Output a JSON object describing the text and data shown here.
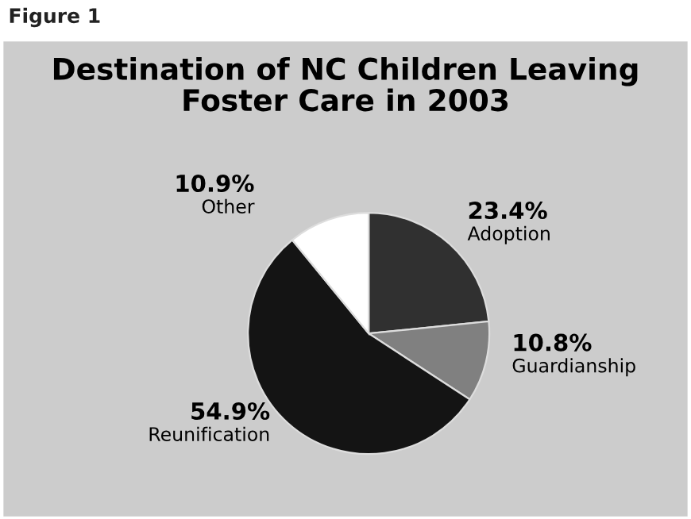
{
  "chart_data": {
    "type": "pie",
    "title": "Destination of NC Children Leaving\nFoster Care in 2003",
    "annotations": [
      "Figure 1"
    ],
    "categories": [
      "Adoption",
      "Guardianship",
      "Reunification",
      "Other"
    ],
    "values": [
      23.4,
      10.8,
      54.9,
      10.9
    ],
    "value_labels": [
      "23.4%",
      "10.8%",
      "54.9%",
      "10.9%"
    ],
    "colors": [
      "#303030",
      "#808080",
      "#141414",
      "#ffffff"
    ],
    "legend": false
  }
}
